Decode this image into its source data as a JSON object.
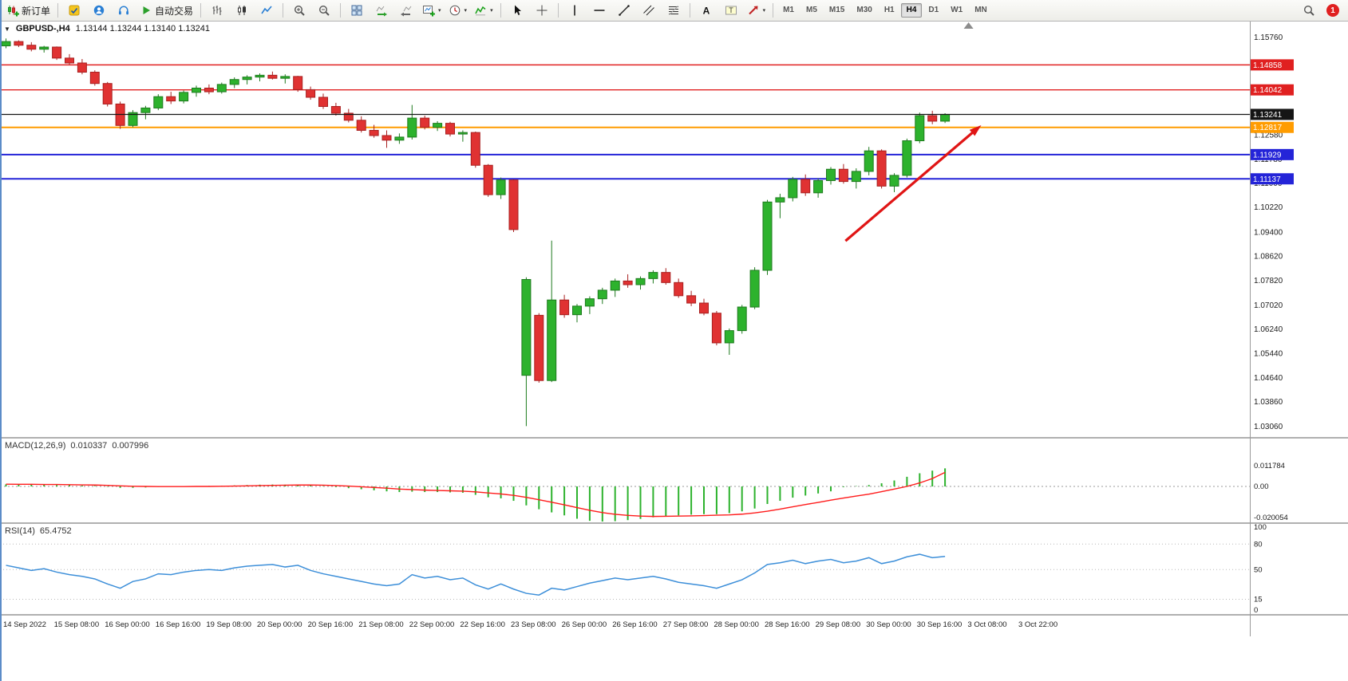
{
  "toolbar": {
    "items": [
      {
        "type": "button",
        "icon": "new-order",
        "label": "新订单"
      },
      {
        "type": "sep"
      },
      {
        "type": "button",
        "icon": "editor"
      },
      {
        "type": "button",
        "icon": "community"
      },
      {
        "type": "button",
        "icon": "headset"
      },
      {
        "type": "button",
        "icon": "autotrading",
        "label": "自动交易"
      },
      {
        "type": "sep"
      },
      {
        "type": "button",
        "icon": "bar-chart"
      },
      {
        "type": "button",
        "icon": "candle-chart"
      },
      {
        "type": "button",
        "icon": "line-chart"
      },
      {
        "type": "sep"
      },
      {
        "type": "button",
        "icon": "zoom-in"
      },
      {
        "type": "button",
        "icon": "zoom-out"
      },
      {
        "type": "sep"
      },
      {
        "type": "button",
        "icon": "tile-windows"
      },
      {
        "type": "button",
        "icon": "auto-scroll"
      },
      {
        "type": "button",
        "icon": "chart-shift"
      },
      {
        "type": "button",
        "icon": "new-chart",
        "caret": true
      },
      {
        "type": "button",
        "icon": "periods",
        "caret": true
      },
      {
        "type": "button",
        "icon": "indicators",
        "caret": true
      },
      {
        "type": "sep"
      },
      {
        "type": "button",
        "icon": "cursor"
      },
      {
        "type": "button",
        "icon": "crosshair"
      },
      {
        "type": "sep"
      },
      {
        "type": "button",
        "icon": "vertical-line"
      },
      {
        "type": "button",
        "icon": "horizontal-line"
      },
      {
        "type": "button",
        "icon": "trend-line"
      },
      {
        "type": "button",
        "icon": "channel"
      },
      {
        "type": "button",
        "icon": "fibonacci"
      },
      {
        "type": "sep"
      },
      {
        "type": "button",
        "icon": "text"
      },
      {
        "type": "button",
        "icon": "text-label"
      },
      {
        "type": "button",
        "icon": "arrows",
        "caret": true
      },
      {
        "type": "sep"
      }
    ],
    "timeframes": [
      "M1",
      "M5",
      "M15",
      "M30",
      "H1",
      "H4",
      "D1",
      "W1",
      "MN"
    ],
    "active_timeframe": "H4",
    "notification_count": "1"
  },
  "chart_header": {
    "collapse_icon": "▼",
    "symbol": "GBPUSD-,H4",
    "ohlc": "1.13144 1.13244 1.13140 1.13241"
  },
  "chart_data": {
    "type": "candlestick",
    "title": "GBPUSD-,H4",
    "symbol": "GBPUSD-",
    "timeframe": "H4",
    "current_bar": {
      "open": 1.13144,
      "high": 1.13244,
      "low": 1.1314,
      "close": 1.13241
    },
    "ylim": [
      1.0271,
      1.163
    ],
    "price_axis_labels": [
      "1.15760",
      "1.12580",
      "1.11780",
      "1.11000",
      "1.10220",
      "1.09400",
      "1.08620",
      "1.07820",
      "1.07020",
      "1.06240",
      "1.05440",
      "1.04640",
      "1.03860",
      "1.03060"
    ],
    "time_labels": [
      {
        "bar": 0,
        "label": "14 Sep 2022"
      },
      {
        "bar": 4,
        "label": "15 Sep 08:00"
      },
      {
        "bar": 8,
        "label": "16 Sep 00:00"
      },
      {
        "bar": 12,
        "label": "16 Sep 16:00"
      },
      {
        "bar": 16,
        "label": "19 Sep 08:00"
      },
      {
        "bar": 20,
        "label": "20 Sep 00:00"
      },
      {
        "bar": 24,
        "label": "20 Sep 16:00"
      },
      {
        "bar": 28,
        "label": "21 Sep 08:00"
      },
      {
        "bar": 32,
        "label": "22 Sep 00:00"
      },
      {
        "bar": 36,
        "label": "22 Sep 16:00"
      },
      {
        "bar": 40,
        "label": "23 Sep 08:00"
      },
      {
        "bar": 44,
        "label": "26 Sep 00:00"
      },
      {
        "bar": 48,
        "label": "26 Sep 16:00"
      },
      {
        "bar": 52,
        "label": "27 Sep 08:00"
      },
      {
        "bar": 56,
        "label": "28 Sep 00:00"
      },
      {
        "bar": 60,
        "label": "28 Sep 16:00"
      },
      {
        "bar": 64,
        "label": "29 Sep 08:00"
      },
      {
        "bar": 68,
        "label": "30 Sep 00:00"
      },
      {
        "bar": 72,
        "label": "30 Sep 16:00"
      },
      {
        "bar": 76,
        "label": "3 Oct 08:00"
      },
      {
        "bar": 80,
        "label": "3 Oct 22:00"
      }
    ],
    "levels": [
      {
        "price": 1.14858,
        "label": "1.14858",
        "color": "#e02020",
        "width": 1.4,
        "name": "resistance-line-upper"
      },
      {
        "price": 1.14042,
        "label": "1.14042",
        "color": "#e02020",
        "width": 1.4,
        "name": "resistance-line-lower"
      },
      {
        "price": 1.13241,
        "label": "1.13241",
        "color": "#151515",
        "width": 1.2,
        "name": "bid-price-line"
      },
      {
        "price": 1.12817,
        "label": "1.12817",
        "color": "#ff9c00",
        "width": 2,
        "name": "support-line-orange"
      },
      {
        "price": 1.11929,
        "label": "1.11929",
        "color": "#2424d8",
        "width": 2,
        "name": "support-line-blue-upper"
      },
      {
        "price": 1.11137,
        "label": "1.11137",
        "color": "#2424d8",
        "width": 2,
        "name": "support-line-blue-lower"
      }
    ],
    "annotations": [
      {
        "type": "trend-arrow",
        "color": "#e01515",
        "from_bar": 66.5,
        "from_price": 1.0911,
        "to_bar": 77.2,
        "to_price": 1.1289
      },
      {
        "type": "shift-marker",
        "bar": 76.2,
        "color": "#8c8c8c"
      }
    ],
    "colors": {
      "bull": "#2db22d",
      "bull_edge": "#1e7a1e",
      "bear": "#e03232",
      "bear_edge": "#a82020"
    },
    "candles": [
      [
        1.1548,
        1.1572,
        1.154,
        1.1562
      ],
      [
        1.1562,
        1.1566,
        1.1544,
        1.155
      ],
      [
        1.155,
        1.156,
        1.153,
        1.1537
      ],
      [
        1.1537,
        1.1548,
        1.1526,
        1.1544
      ],
      [
        1.1544,
        1.1546,
        1.1502,
        1.1508
      ],
      [
        1.1508,
        1.1521,
        1.1486,
        1.1492
      ],
      [
        1.1492,
        1.1505,
        1.1455,
        1.1462
      ],
      [
        1.1462,
        1.1468,
        1.1418,
        1.1425
      ],
      [
        1.1425,
        1.143,
        1.135,
        1.1358
      ],
      [
        1.1358,
        1.1366,
        1.1277,
        1.1288
      ],
      [
        1.1288,
        1.1338,
        1.1282,
        1.133
      ],
      [
        1.133,
        1.1352,
        1.1308,
        1.1345
      ],
      [
        1.1345,
        1.139,
        1.1338,
        1.1382
      ],
      [
        1.1382,
        1.1398,
        1.1358,
        1.1368
      ],
      [
        1.1368,
        1.1402,
        1.136,
        1.1396
      ],
      [
        1.1396,
        1.1418,
        1.1382,
        1.141
      ],
      [
        1.141,
        1.1422,
        1.139,
        1.1398
      ],
      [
        1.1398,
        1.1428,
        1.1392,
        1.1422
      ],
      [
        1.1422,
        1.1445,
        1.141,
        1.1438
      ],
      [
        1.1438,
        1.1452,
        1.1422,
        1.1446
      ],
      [
        1.1446,
        1.1458,
        1.1432,
        1.1452
      ],
      [
        1.1452,
        1.1464,
        1.1438,
        1.1442
      ],
      [
        1.1442,
        1.1455,
        1.1425,
        1.1448
      ],
      [
        1.1448,
        1.145,
        1.1398,
        1.1405
      ],
      [
        1.1405,
        1.1415,
        1.1372,
        1.138
      ],
      [
        1.138,
        1.1392,
        1.1342,
        1.135
      ],
      [
        1.135,
        1.1362,
        1.132,
        1.1328
      ],
      [
        1.1328,
        1.1342,
        1.1298,
        1.1305
      ],
      [
        1.1305,
        1.1318,
        1.1265,
        1.1272
      ],
      [
        1.1272,
        1.129,
        1.1248,
        1.1255
      ],
      [
        1.1255,
        1.1272,
        1.1215,
        1.124
      ],
      [
        1.124,
        1.1262,
        1.1228,
        1.125
      ],
      [
        1.125,
        1.1355,
        1.1242,
        1.1312
      ],
      [
        1.1312,
        1.132,
        1.1275,
        1.1282
      ],
      [
        1.1282,
        1.1302,
        1.127,
        1.1295
      ],
      [
        1.1295,
        1.13,
        1.1252,
        1.126
      ],
      [
        1.126,
        1.1272,
        1.1235,
        1.1265
      ],
      [
        1.1265,
        1.1268,
        1.115,
        1.1158
      ],
      [
        1.1158,
        1.1162,
        1.1055,
        1.1062
      ],
      [
        1.1062,
        1.1118,
        1.1048,
        1.111
      ],
      [
        1.111,
        1.1112,
        1.094,
        1.0948
      ],
      [
        1.0472,
        1.0792,
        1.0306,
        1.0785
      ],
      [
        1.0668,
        1.0675,
        1.0448,
        1.0455
      ],
      [
        1.0455,
        1.0912,
        1.045,
        1.0718
      ],
      [
        1.0718,
        1.0735,
        1.066,
        1.067
      ],
      [
        1.067,
        1.0705,
        1.0645,
        1.0698
      ],
      [
        1.0698,
        1.073,
        1.0672,
        1.0722
      ],
      [
        1.0722,
        1.0758,
        1.0705,
        1.075
      ],
      [
        1.075,
        1.0788,
        1.0728,
        1.078
      ],
      [
        1.078,
        1.0802,
        1.0758,
        1.0768
      ],
      [
        1.0768,
        1.0795,
        1.0752,
        1.0788
      ],
      [
        1.0788,
        1.0815,
        1.0772,
        1.0808
      ],
      [
        1.0808,
        1.0822,
        1.0768,
        1.0775
      ],
      [
        1.0775,
        1.0788,
        1.0725,
        1.0732
      ],
      [
        1.0732,
        1.0748,
        1.0698,
        1.0708
      ],
      [
        1.0708,
        1.0722,
        1.0668,
        1.0675
      ],
      [
        1.0675,
        1.0682,
        1.057,
        1.0578
      ],
      [
        1.0578,
        1.0625,
        1.0539,
        1.0618
      ],
      [
        1.0618,
        1.0702,
        1.0608,
        1.0695
      ],
      [
        1.0695,
        1.0825,
        1.0688,
        1.0815
      ],
      [
        1.0815,
        1.1045,
        1.08,
        1.1038
      ],
      [
        1.1038,
        1.1065,
        1.0985,
        1.1052
      ],
      [
        1.1052,
        1.112,
        1.104,
        1.1112
      ],
      [
        1.1112,
        1.1128,
        1.1058,
        1.1068
      ],
      [
        1.1068,
        1.1115,
        1.1052,
        1.1108
      ],
      [
        1.1108,
        1.1152,
        1.1095,
        1.1145
      ],
      [
        1.1145,
        1.1162,
        1.1098,
        1.1105
      ],
      [
        1.1105,
        1.1148,
        1.1082,
        1.1138
      ],
      [
        1.1138,
        1.1218,
        1.1125,
        1.1205
      ],
      [
        1.1205,
        1.121,
        1.1082,
        1.109
      ],
      [
        1.109,
        1.1132,
        1.107,
        1.1125
      ],
      [
        1.1125,
        1.1245,
        1.1118,
        1.1238
      ],
      [
        1.1238,
        1.133,
        1.123,
        1.132
      ],
      [
        1.132,
        1.1336,
        1.1292,
        1.1302
      ],
      [
        1.1302,
        1.1328,
        1.1296,
        1.13241
      ]
    ],
    "indicators": {
      "macd": {
        "title": "MACD(12,26,9)",
        "main_value": "0.010337",
        "signal_value": "0.007996",
        "axis_labels": [
          "0.011784",
          "0.00",
          "-0.020054"
        ],
        "axis_values": [
          0.011784,
          0,
          -0.020054
        ],
        "histogram_color": "#2db22d",
        "signal_color": "#ff1a1a",
        "histogram": [
          0.0012,
          0.0011,
          0.001,
          0.001,
          0.0008,
          0.0007,
          0.0005,
          0.0003,
          -0.0002,
          -0.0008,
          -0.0008,
          -0.0006,
          -0.0003,
          -0.0002,
          -0.0001,
          0.0001,
          0.0003,
          0.0004,
          0.0006,
          0.0008,
          0.001,
          0.0011,
          0.001,
          0.001,
          0.0007,
          0.0002,
          -0.0004,
          -0.001,
          -0.0016,
          -0.0022,
          -0.0028,
          -0.0032,
          -0.003,
          -0.0032,
          -0.0032,
          -0.0034,
          -0.0036,
          -0.0048,
          -0.0062,
          -0.0068,
          -0.0082,
          -0.0108,
          -0.013,
          -0.0148,
          -0.0165,
          -0.0184,
          -0.0196,
          -0.02,
          -0.0198,
          -0.0192,
          -0.0185,
          -0.0176,
          -0.017,
          -0.0165,
          -0.0161,
          -0.0158,
          -0.0158,
          -0.0152,
          -0.0142,
          -0.0126,
          -0.01,
          -0.0082,
          -0.0064,
          -0.0052,
          -0.004,
          -0.0028,
          -0.0004,
          0.0002,
          0.0008,
          0.0018,
          0.0034,
          0.0055,
          0.0075,
          0.009,
          0.0103
        ],
        "signal": [
          0.0013,
          0.0012,
          0.0012,
          0.0011,
          0.0011,
          0.001,
          0.0009,
          0.0008,
          0.0006,
          0.0003,
          0.0001,
          0.0,
          -0.0001,
          -0.0001,
          -0.0001,
          0.0,
          0.0,
          0.0001,
          0.0002,
          0.0003,
          0.0005,
          0.0006,
          0.0007,
          0.0008,
          0.0008,
          0.0007,
          0.0005,
          0.0002,
          -0.0002,
          -0.0006,
          -0.001,
          -0.0015,
          -0.0018,
          -0.0021,
          -0.0023,
          -0.0025,
          -0.0027,
          -0.0031,
          -0.0037,
          -0.0043,
          -0.0051,
          -0.0062,
          -0.0076,
          -0.009,
          -0.0105,
          -0.0121,
          -0.0136,
          -0.0149,
          -0.0159,
          -0.0165,
          -0.0169,
          -0.0171,
          -0.017,
          -0.0169,
          -0.0168,
          -0.0166,
          -0.0164,
          -0.0162,
          -0.0158,
          -0.0151,
          -0.0141,
          -0.0129,
          -0.0116,
          -0.0103,
          -0.0091,
          -0.0078,
          -0.0066,
          -0.0055,
          -0.0044,
          -0.003,
          -0.0015,
          0.0,
          0.002,
          0.0045,
          0.008
        ]
      },
      "rsi": {
        "title": "RSI(14)",
        "value": "65.4752",
        "axis_labels": [
          "100",
          "80",
          "50",
          "15",
          "0"
        ],
        "axis_values": [
          100,
          80,
          50,
          15,
          0
        ],
        "levels": [
          80,
          50,
          15
        ],
        "line_color": "#3d8fd9",
        "values": [
          55,
          52,
          49,
          51,
          47,
          44,
          42,
          39,
          33,
          28,
          36,
          39,
          45,
          44,
          47,
          49,
          50,
          49,
          52,
          54,
          55,
          56,
          53,
          55,
          49,
          45,
          42,
          39,
          36,
          33,
          31,
          33,
          44,
          40,
          42,
          38,
          40,
          32,
          27,
          33,
          27,
          22,
          20,
          28,
          26,
          30,
          34,
          37,
          40,
          38,
          40,
          42,
          39,
          35,
          33,
          31,
          28,
          33,
          38,
          46,
          56,
          58,
          61,
          57,
          60,
          62,
          58,
          60,
          64,
          57,
          60,
          65,
          68,
          64,
          65.5
        ]
      }
    }
  }
}
